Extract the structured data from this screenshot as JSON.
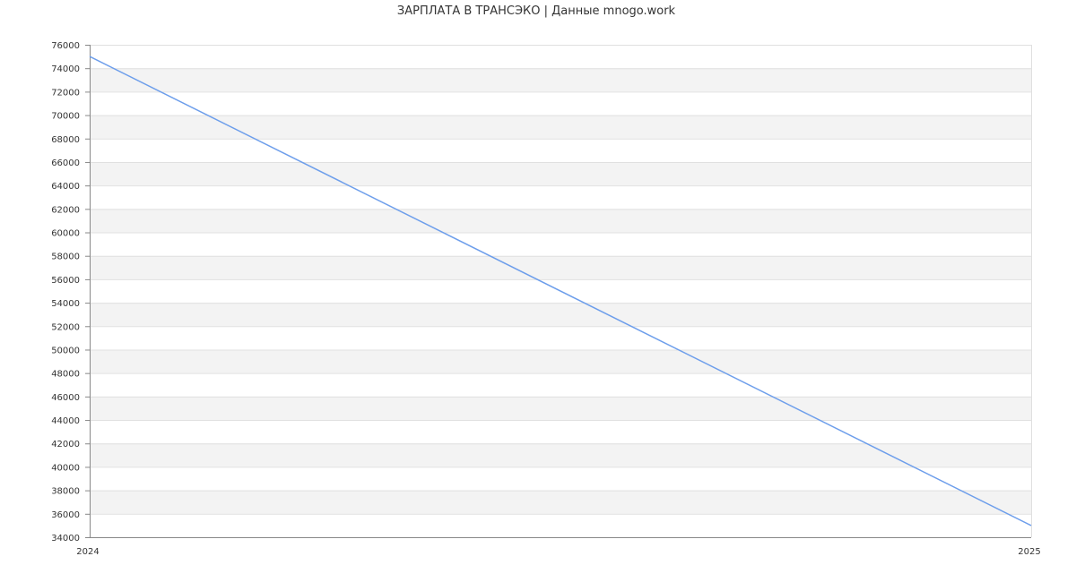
{
  "chart_data": {
    "type": "line",
    "title": "ЗАРПЛАТА В  ТРАНСЭКО | Данные mnogo.work",
    "xlabel": "",
    "ylabel": "",
    "x_ticks": [
      "2024",
      "2025"
    ],
    "ylim": [
      34000,
      76000
    ],
    "y_tick_step": 2000,
    "grid": true,
    "band_colors": [
      "#ffffff",
      "#f3f3f3"
    ],
    "series": [
      {
        "x": [
          2024,
          2025
        ],
        "values": [
          75000,
          35000
        ],
        "color": "#6d9eeb"
      }
    ]
  }
}
